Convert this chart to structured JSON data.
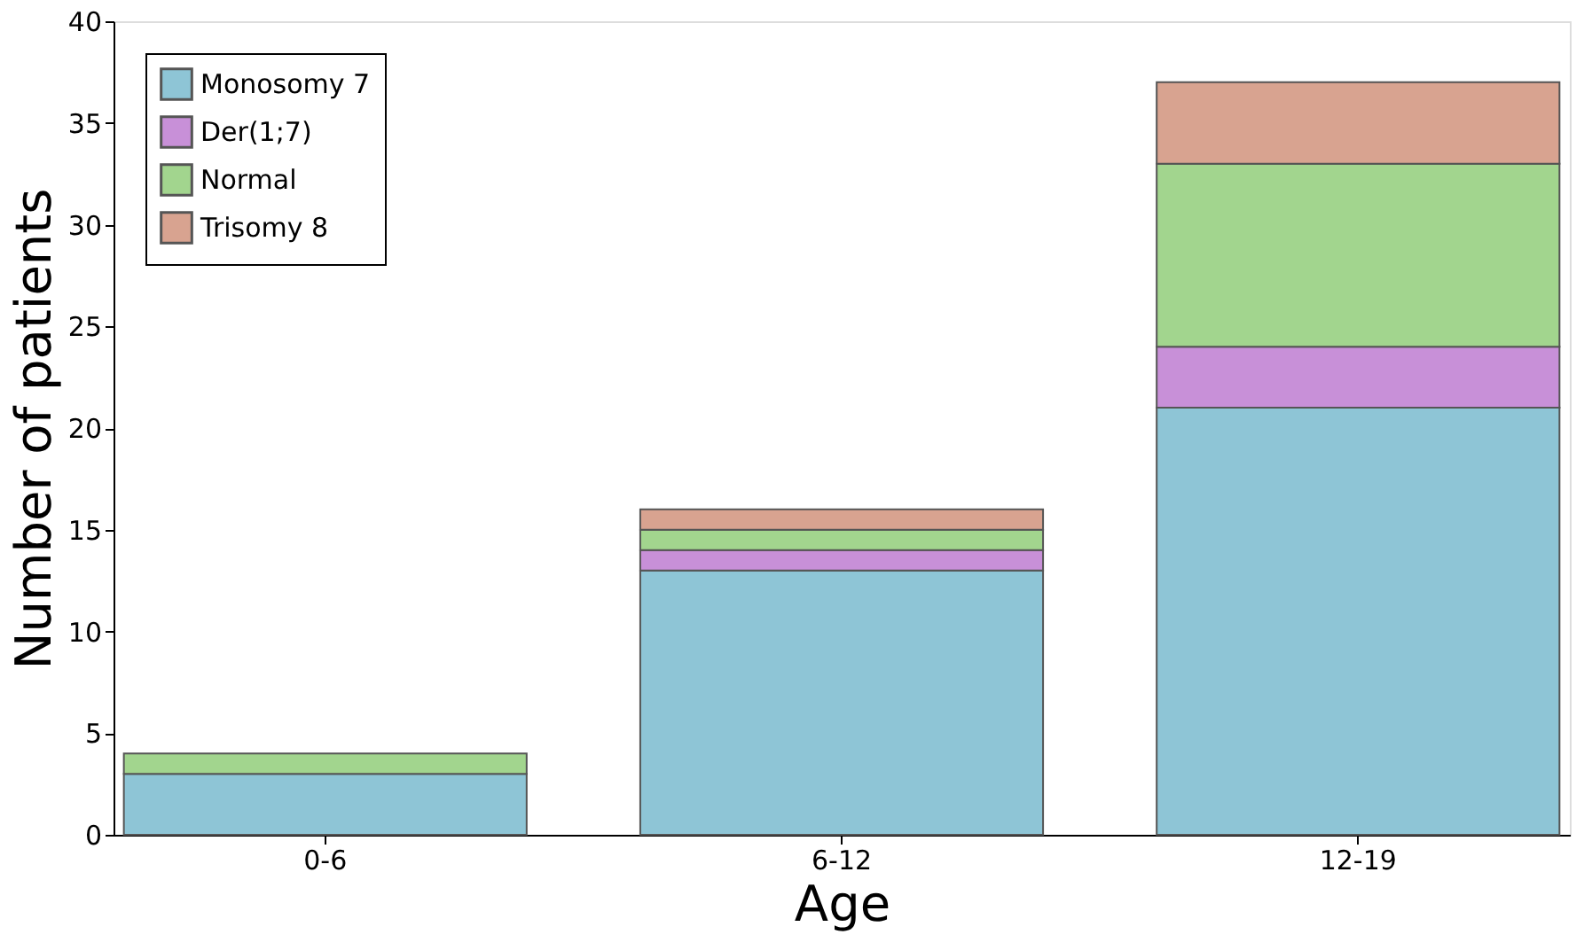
{
  "chart_data": {
    "type": "bar",
    "stacked": true,
    "xlabel": "Age",
    "ylabel": "Number of patients",
    "categories": [
      "0-6",
      "6-12",
      "12-19"
    ],
    "series": [
      {
        "name": "Monosomy 7",
        "color": "#8ec5d6",
        "values": [
          3,
          13,
          21
        ]
      },
      {
        "name": "Der(1;7)",
        "color": "#c890d8",
        "values": [
          0,
          1,
          3
        ]
      },
      {
        "name": "Normal",
        "color": "#a2d58e",
        "values": [
          1,
          1,
          9
        ]
      },
      {
        "name": "Trisomy 8",
        "color": "#d8a390",
        "values": [
          0,
          1,
          4
        ]
      }
    ],
    "ylim": [
      0,
      40
    ],
    "yticks": [
      0,
      5,
      10,
      15,
      20,
      25,
      30,
      35,
      40
    ],
    "grid": false,
    "legend": "top left"
  }
}
